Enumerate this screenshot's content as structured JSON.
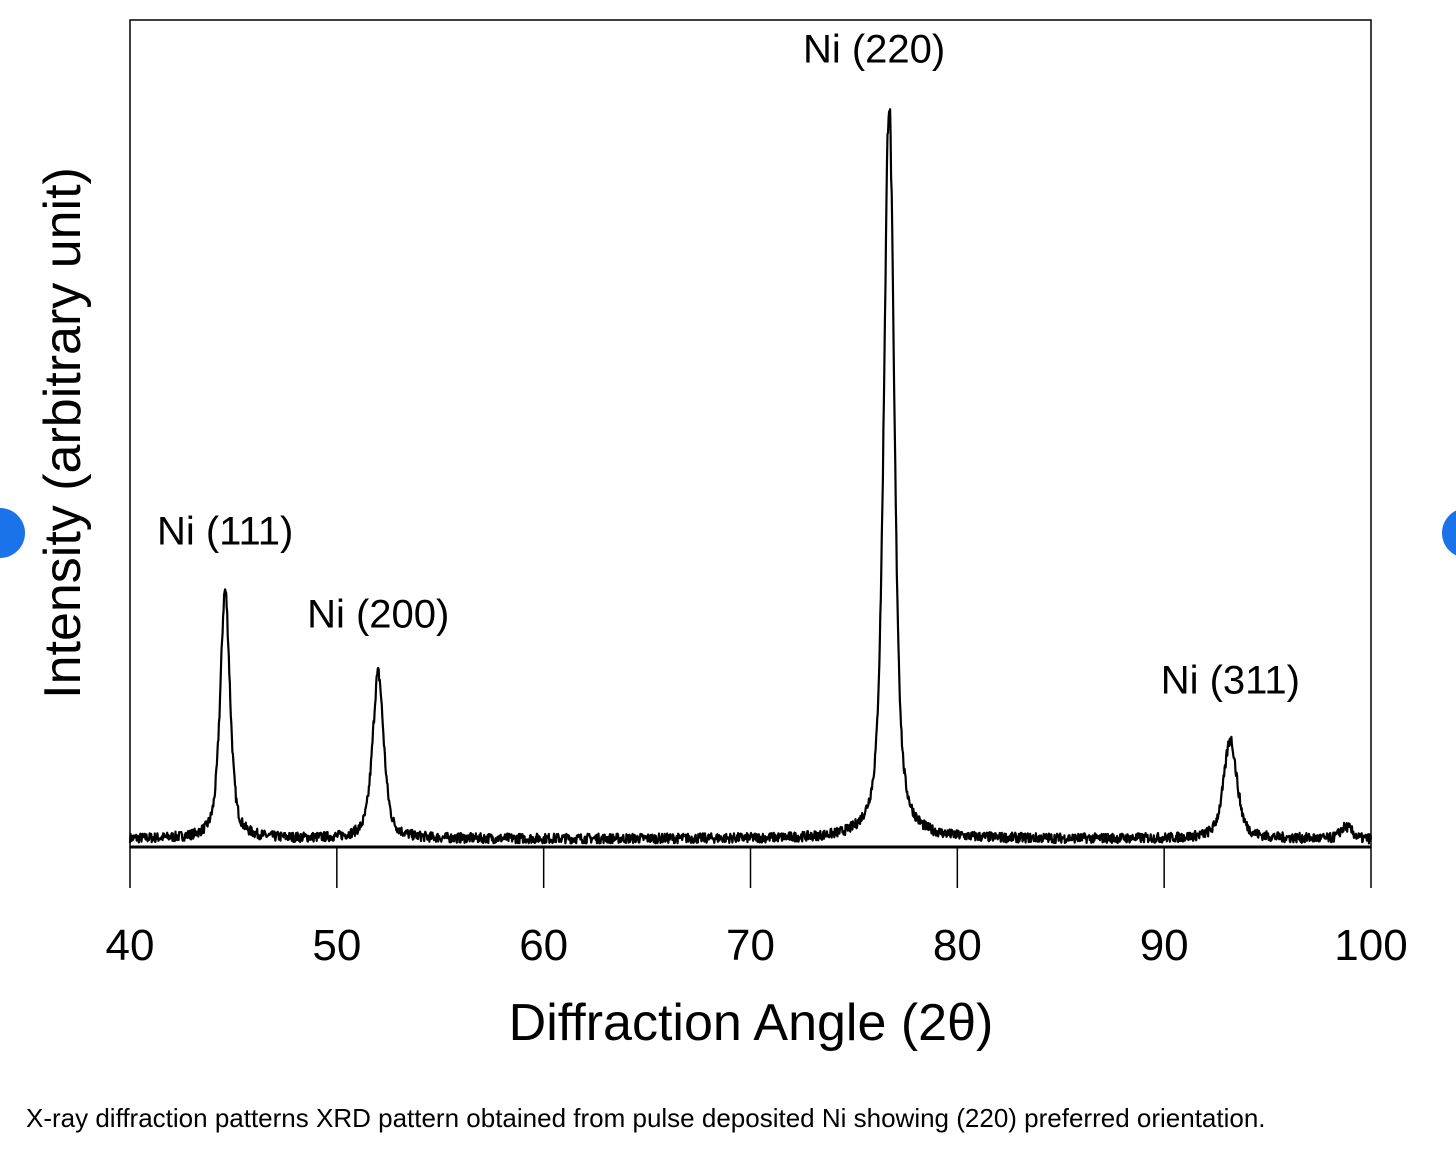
{
  "chart_data": {
    "type": "line",
    "xlabel": "Diffraction Angle (2θ)",
    "ylabel": "Intensity (arbitrary unit)",
    "xlim": [
      40,
      100
    ],
    "ylim": [
      0,
      100
    ],
    "xticks": [
      40,
      50,
      60,
      70,
      80,
      90,
      100
    ],
    "baseline": 1.0,
    "series": [
      {
        "peaks": [
          {
            "label": "Ni (111)",
            "x": 44.6,
            "y": 31.0
          },
          {
            "label": "Ni (200)",
            "x": 52.0,
            "y": 21.0
          },
          {
            "label": "Ni (220)",
            "x": 76.7,
            "y": 90.0
          },
          {
            "label": "Ni (311)",
            "x": 93.2,
            "y": 13.0
          }
        ]
      }
    ],
    "minor_features": [
      {
        "x": 98.8,
        "y": 2.4
      }
    ],
    "colors": {
      "line": "#000000",
      "axis": "#000000"
    }
  },
  "caption": "X-ray diffraction patterns XRD pattern obtained from pulse deposited Ni showing (220) preferred orientation."
}
